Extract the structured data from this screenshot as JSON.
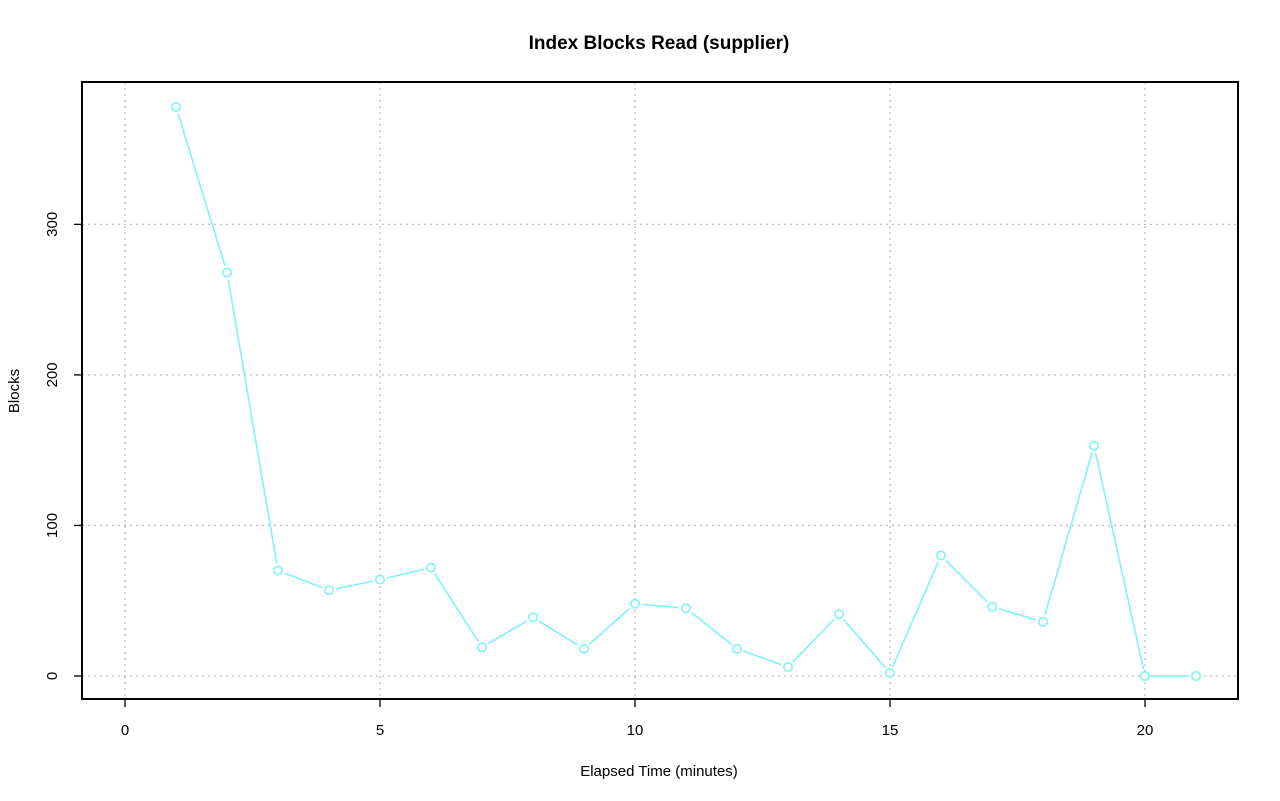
{
  "chart_data": {
    "type": "line",
    "title": "Index Blocks Read (supplier)",
    "xlabel": "Elapsed Time (minutes)",
    "ylabel": "Blocks",
    "xlim": [
      0,
      21
    ],
    "ylim": [
      0,
      378
    ],
    "x_ticks": [
      0,
      5,
      10,
      15,
      20
    ],
    "y_ticks": [
      0,
      100,
      200,
      300
    ],
    "grid": true,
    "legend": "none",
    "series_color": "#7ff4f4",
    "x": [
      1,
      2,
      3,
      4,
      5,
      6,
      7,
      8,
      9,
      10,
      11,
      12,
      13,
      14,
      15,
      16,
      17,
      18,
      19,
      20,
      21
    ],
    "values": [
      378,
      268,
      70,
      57,
      64,
      72,
      19,
      39,
      18,
      48,
      45,
      18,
      6,
      41,
      2,
      80,
      46,
      36,
      153,
      0,
      0
    ]
  }
}
